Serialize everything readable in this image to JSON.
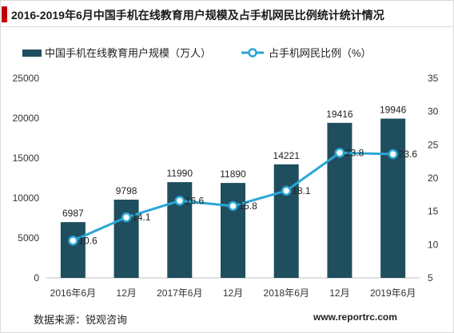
{
  "title": "2016-2019年6月中国手机在线教育用户规模及占手机网民比例统计统计情况",
  "footer": {
    "source": "数据来源：锐观咨询",
    "website": "www.reportrc.com"
  },
  "colors": {
    "bar": "#1f4e5f",
    "line": "#2aa7d6",
    "accent": "#c00000"
  },
  "chart_data": {
    "type": "bar",
    "categories": [
      "2016年6月",
      "12月",
      "2017年6月",
      "12月",
      "2018年6月",
      "12月",
      "2019年6月"
    ],
    "series": [
      {
        "name": "中国手机在线教育用户规模（万人）",
        "type": "bar",
        "axis": "left",
        "values": [
          6987,
          9798,
          11990,
          11890,
          14221,
          19416,
          19946
        ]
      },
      {
        "name": "占手机网民比例（%）",
        "type": "line",
        "axis": "right",
        "values": [
          10.6,
          14.1,
          16.6,
          15.8,
          18.1,
          23.8,
          23.6
        ]
      }
    ],
    "y_left": {
      "min": 0,
      "max": 25000,
      "ticks": [
        0,
        5000,
        10000,
        15000,
        20000,
        25000
      ]
    },
    "y_right": {
      "min": 5,
      "max": 35,
      "ticks": [
        5,
        10,
        15,
        20,
        25,
        30,
        35
      ]
    },
    "legend_position": "top",
    "grid": false
  }
}
